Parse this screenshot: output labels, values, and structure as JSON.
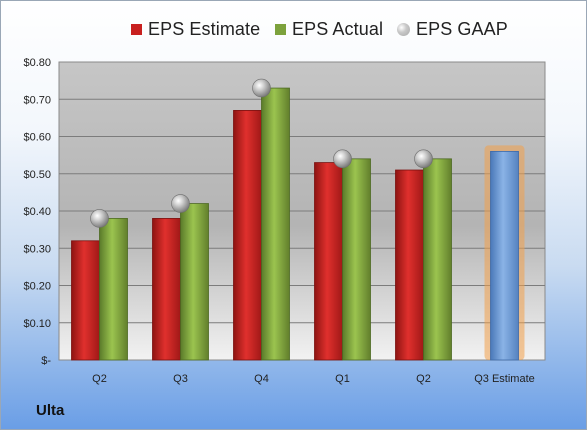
{
  "company": "Ulta",
  "colors": {
    "estimate": "#c8201f",
    "actual": "#7da23c",
    "gaap": "#a7a7a7",
    "q3estimate": "#6d9ad6",
    "q3glow": "#f3a14a"
  },
  "legend": [
    {
      "label": "EPS Estimate",
      "marker": "square",
      "color": "#c8201f"
    },
    {
      "label": "EPS Actual",
      "marker": "square",
      "color": "#7da23c"
    },
    {
      "label": "EPS GAAP",
      "marker": "ball",
      "color": "#a7a7a7"
    }
  ],
  "chart_data": {
    "type": "bar",
    "categories": [
      "Q2",
      "Q3",
      "Q4",
      "Q1",
      "Q2",
      "Q3 Estimate"
    ],
    "series": [
      {
        "name": "EPS Estimate",
        "values": [
          0.32,
          0.38,
          0.67,
          0.53,
          0.51,
          null
        ]
      },
      {
        "name": "EPS Actual",
        "values": [
          0.38,
          0.42,
          0.73,
          0.54,
          0.54,
          0.56
        ]
      },
      {
        "name": "EPS GAAP",
        "values": [
          0.38,
          0.42,
          0.73,
          0.54,
          0.54,
          null
        ]
      }
    ],
    "highlight": {
      "category": "Q3 Estimate",
      "value": 0.56
    },
    "ylim": [
      0,
      0.8
    ],
    "yticks": [
      0,
      0.1,
      0.2,
      0.3,
      0.4,
      0.5,
      0.6,
      0.7,
      0.8
    ],
    "ytick_labels": [
      "$-",
      "$0.10",
      "$0.20",
      "$0.30",
      "$0.40",
      "$0.50",
      "$0.60",
      "$0.70",
      "$0.80"
    ],
    "grid": true,
    "legend_position": "top"
  }
}
